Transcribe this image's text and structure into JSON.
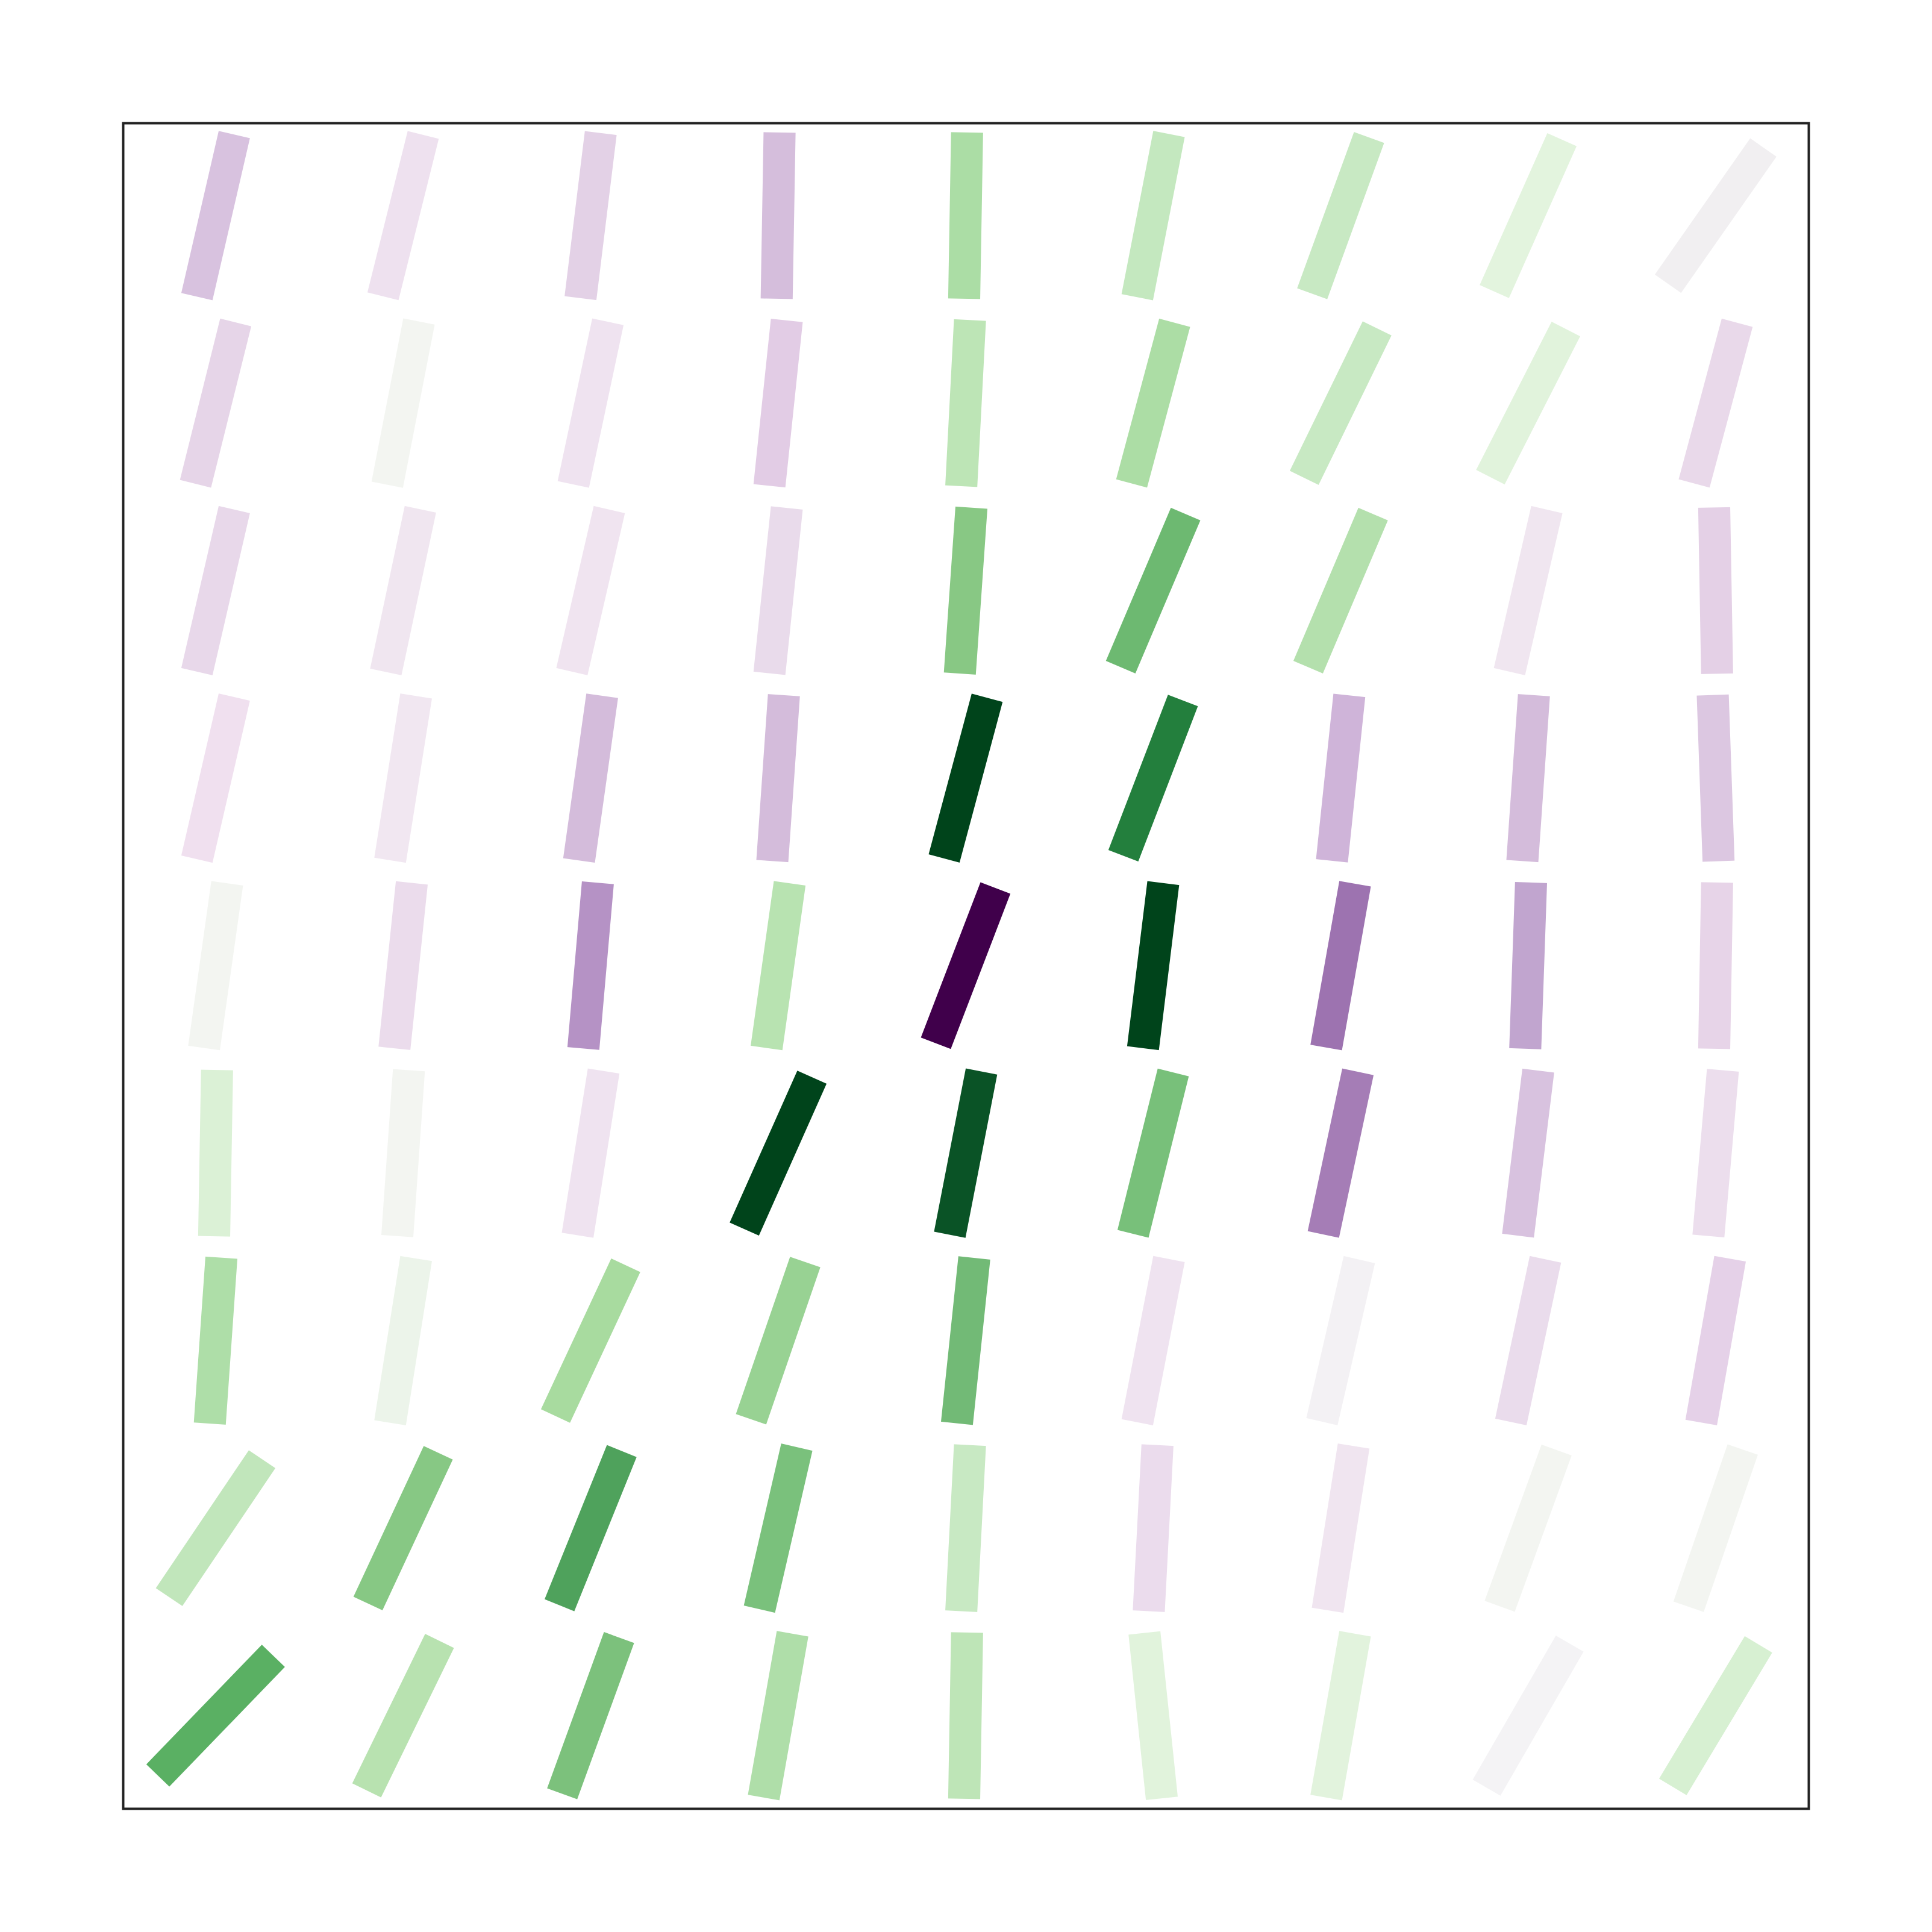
{
  "chart_data": {
    "type": "quiver",
    "angles": [
      [
        13,
        14,
        7,
        1,
        1,
        11,
        20,
        24,
        35
      ],
      [
        14,
        11,
        12,
        6,
        3,
        15,
        26,
        27,
        15
      ],
      [
        13,
        12,
        13,
        6,
        4,
        23,
        23,
        13,
        -1
      ],
      [
        13,
        9,
        8,
        4,
        15,
        21,
        6,
        4,
        -2
      ],
      [
        8,
        6,
        5,
        8,
        21,
        7,
        10,
        2,
        1
      ],
      [
        1,
        4,
        9,
        24,
        11,
        14,
        12,
        7,
        5
      ],
      [
        4,
        9,
        25,
        19,
        6,
        11,
        13,
        12,
        10
      ],
      [
        34,
        25,
        22,
        13,
        3,
        3,
        9,
        20,
        19
      ],
      [
        44,
        26,
        20,
        10,
        1,
        -6,
        10,
        30,
        31
      ]
    ],
    "colors": [
      [
        "#d8c2df",
        "#eee1ef",
        "#e3d1e6",
        "#d5bedc",
        "#abdda5",
        "#c4e8bf",
        "#c8e9c3",
        "#e3f4de",
        "#f1eff1"
      ],
      [
        "#e6d5e8",
        "#f3f5f1",
        "#efe3f0",
        "#e2cce5",
        "#bde5b6",
        "#acdda5",
        "#c8e9c3",
        "#e1f3dc",
        "#e9d9ea"
      ],
      [
        "#e8d8ea",
        "#f0e6f0",
        "#f0e4f0",
        "#e9dbeb",
        "#88c884",
        "#6db971",
        "#b4e0ad",
        "#f0e6f0",
        "#e4d0e6"
      ],
      [
        "#f0e0ef",
        "#f1e7f1",
        "#d4bcdb",
        "#d4bcdb",
        "#00441b",
        "#237f3d",
        "#cfb4d9",
        "#d4bcdb",
        "#dcc7e1"
      ],
      [
        "#f3f5f1",
        "#ebdcec",
        "#b592c5",
        "#b8e3b1",
        "#40004b",
        "#00441b",
        "#9d73b0",
        "#c1a5cf",
        "#e7d4e8"
      ],
      [
        "#dbf1d6",
        "#f3f5f1",
        "#efe3f0",
        "#00441b",
        "#0a5326",
        "#78c07a",
        "#a57db6",
        "#d8c2df",
        "#ecdeed"
      ],
      [
        "#aedea8",
        "#ecf4ea",
        "#a8db9f",
        "#98d293",
        "#72ba76",
        "#efe3f0",
        "#f3f1f4",
        "#eadcec",
        "#e5d1e8"
      ],
      [
        "#c1e6bb",
        "#87c884",
        "#4fa25c",
        "#7ac17c",
        "#c8e9c3",
        "#ebdced",
        "#f0e5f0",
        "#f3f5f1",
        "#f3f5f1"
      ],
      [
        "#5ab063",
        "#b8e2b0",
        "#7cc17c",
        "#afdea9",
        "#bee5b7",
        "#e1f3dc",
        "#e2f3dd",
        "#f4f3f5",
        "#d7f0d2"
      ]
    ]
  }
}
